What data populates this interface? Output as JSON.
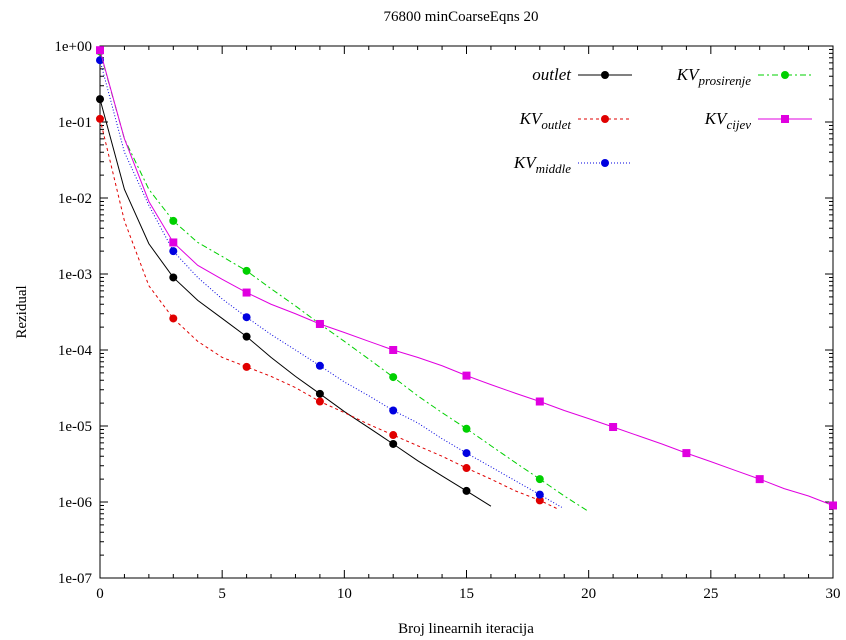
{
  "chart_data": {
    "type": "line",
    "title": "76800 minCoarseEqns 20",
    "xlabel": "Broj linearnih iteracija",
    "ylabel": "Rezidual",
    "xlim": [
      0,
      30
    ],
    "ylim": [
      1e-07,
      1
    ],
    "yscale": "log",
    "xticks": [
      "0",
      "5",
      "10",
      "15",
      "20",
      "25",
      "30"
    ],
    "yticks": [
      "1e-07",
      "1e-06",
      "1e-05",
      "1e-04",
      "1e-03",
      "1e-02",
      "1e-01",
      "1e+00"
    ],
    "grid": false,
    "legend_position": "top-right",
    "series": [
      {
        "name": "outlet",
        "name_base": "outlet",
        "name_sub": "",
        "color": "#000000",
        "dash": "",
        "marker": "circle",
        "line": [
          [
            0,
            0.2
          ],
          [
            1,
            0.013
          ],
          [
            2,
            0.0025
          ],
          [
            3,
            0.0009
          ],
          [
            4,
            0.00045
          ],
          [
            5,
            0.00026
          ],
          [
            6,
            0.00015
          ],
          [
            7,
            8e-05
          ],
          [
            8,
            4.5e-05
          ],
          [
            9,
            2.65e-05
          ],
          [
            10,
            1.55e-05
          ],
          [
            11,
            9.5e-06
          ],
          [
            12,
            5.8e-06
          ],
          [
            13,
            3.5e-06
          ],
          [
            14,
            2.2e-06
          ],
          [
            15,
            1.4e-06
          ],
          [
            16,
            8.8e-07
          ]
        ],
        "markers": [
          [
            0,
            0.2
          ],
          [
            3,
            0.0009
          ],
          [
            6,
            0.00015
          ],
          [
            9,
            2.65e-05
          ],
          [
            12,
            5.8e-06
          ],
          [
            15,
            1.4e-06
          ]
        ]
      },
      {
        "name": "KVoutlet",
        "name_base": "KV",
        "name_sub": "outlet",
        "color": "#e00000",
        "dash": "3,3",
        "marker": "circle",
        "line": [
          [
            0,
            0.11
          ],
          [
            1,
            0.005
          ],
          [
            2,
            0.0007
          ],
          [
            3,
            0.00026
          ],
          [
            4,
            0.00013
          ],
          [
            5,
            8e-05
          ],
          [
            6,
            6e-05
          ],
          [
            7,
            4.5e-05
          ],
          [
            8,
            3.2e-05
          ],
          [
            9,
            2.1e-05
          ],
          [
            10,
            1.5e-05
          ],
          [
            11,
            1.05e-05
          ],
          [
            12,
            7.6e-06
          ],
          [
            13,
            5.5e-06
          ],
          [
            14,
            4e-06
          ],
          [
            15,
            2.8e-06
          ],
          [
            16,
            2e-06
          ],
          [
            17,
            1.4e-06
          ],
          [
            18,
            1.05e-06
          ],
          [
            18.7,
            8.2e-07
          ]
        ],
        "markers": [
          [
            0,
            0.11
          ],
          [
            3,
            0.00026
          ],
          [
            6,
            6e-05
          ],
          [
            9,
            2.1e-05
          ],
          [
            12,
            7.6e-06
          ],
          [
            15,
            2.8e-06
          ],
          [
            18,
            1.05e-06
          ]
        ]
      },
      {
        "name": "KVmiddle",
        "name_base": "KV",
        "name_sub": "middle",
        "color": "#0000e0",
        "dash": "1,2",
        "marker": "circle",
        "line": [
          [
            0,
            0.65
          ],
          [
            1,
            0.04
          ],
          [
            2,
            0.008
          ],
          [
            3,
            0.002
          ],
          [
            4,
            0.0009
          ],
          [
            5,
            0.00047
          ],
          [
            6,
            0.00027
          ],
          [
            7,
            0.00016
          ],
          [
            8,
            0.0001
          ],
          [
            9,
            6.2e-05
          ],
          [
            10,
            3.8e-05
          ],
          [
            11,
            2.5e-05
          ],
          [
            12,
            1.6e-05
          ],
          [
            13,
            1.1e-05
          ],
          [
            14,
            6.8e-06
          ],
          [
            15,
            4.4e-06
          ],
          [
            16,
            2.9e-06
          ],
          [
            17,
            1.9e-06
          ],
          [
            18,
            1.25e-06
          ],
          [
            18.9,
            8.5e-07
          ]
        ],
        "markers": [
          [
            0,
            0.65
          ],
          [
            3,
            0.002
          ],
          [
            6,
            0.00027
          ],
          [
            9,
            6.2e-05
          ],
          [
            12,
            1.6e-05
          ],
          [
            15,
            4.4e-06
          ],
          [
            18,
            1.25e-06
          ]
        ]
      },
      {
        "name": "KVprosirenje",
        "name_base": "KV",
        "name_sub": "prosirenje",
        "color": "#00d000",
        "dash": "6,3,2,3",
        "marker": "circle",
        "line": [
          [
            0,
            0.85
          ],
          [
            1,
            0.06
          ],
          [
            2,
            0.013
          ],
          [
            3,
            0.005
          ],
          [
            4,
            0.0026
          ],
          [
            5,
            0.0017
          ],
          [
            6,
            0.0011
          ],
          [
            7,
            0.00064
          ],
          [
            8,
            0.00038
          ],
          [
            9,
            0.00022
          ],
          [
            10,
            0.00013
          ],
          [
            11,
            7.6e-05
          ],
          [
            12,
            4.4e-05
          ],
          [
            13,
            2.5e-05
          ],
          [
            14,
            1.5e-05
          ],
          [
            15,
            9.2e-06
          ],
          [
            16,
            5.5e-06
          ],
          [
            17,
            3.3e-06
          ],
          [
            18,
            2e-06
          ],
          [
            19,
            1.2e-06
          ],
          [
            20,
            7.5e-07
          ]
        ],
        "markers": [
          [
            0,
            0.85
          ],
          [
            3,
            0.005
          ],
          [
            6,
            0.0011
          ],
          [
            9,
            0.00022
          ],
          [
            12,
            4.4e-05
          ],
          [
            15,
            9.2e-06
          ],
          [
            18,
            2e-06
          ]
        ]
      },
      {
        "name": "KVcijev",
        "name_base": "KV",
        "name_sub": "cijev",
        "color": "#e000e0",
        "dash": "",
        "marker": "square",
        "line": [
          [
            0,
            0.88
          ],
          [
            1,
            0.06
          ],
          [
            2,
            0.009
          ],
          [
            3,
            0.0026
          ],
          [
            4,
            0.0013
          ],
          [
            5,
            0.00085
          ],
          [
            6,
            0.00057
          ],
          [
            7,
            0.0004
          ],
          [
            8,
            0.0003
          ],
          [
            9,
            0.00022
          ],
          [
            10,
            0.00017
          ],
          [
            11,
            0.00013
          ],
          [
            12,
            0.0001
          ],
          [
            13,
            8e-05
          ],
          [
            14,
            6.2e-05
          ],
          [
            15,
            4.6e-05
          ],
          [
            16,
            3.5e-05
          ],
          [
            17,
            2.7e-05
          ],
          [
            18,
            2.1e-05
          ],
          [
            19,
            1.6e-05
          ],
          [
            20,
            1.25e-05
          ],
          [
            21,
            9.7e-06
          ],
          [
            22,
            7.5e-06
          ],
          [
            23,
            5.8e-06
          ],
          [
            24,
            4.4e-06
          ],
          [
            25,
            3.4e-06
          ],
          [
            26,
            2.6e-06
          ],
          [
            27,
            2e-06
          ],
          [
            28,
            1.5e-06
          ],
          [
            29,
            1.2e-06
          ],
          [
            30,
            9e-07
          ]
        ],
        "markers": [
          [
            0,
            0.88
          ],
          [
            3,
            0.0026
          ],
          [
            6,
            0.00057
          ],
          [
            9,
            0.00022
          ],
          [
            12,
            0.0001
          ],
          [
            15,
            4.6e-05
          ],
          [
            18,
            2.1e-05
          ],
          [
            21,
            9.7e-06
          ],
          [
            24,
            4.4e-06
          ],
          [
            27,
            2e-06
          ],
          [
            30,
            9e-07
          ]
        ]
      }
    ]
  }
}
